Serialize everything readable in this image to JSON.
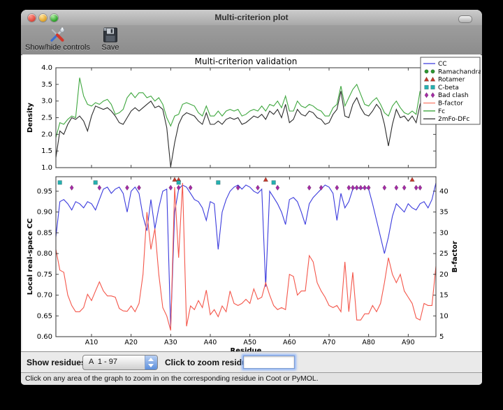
{
  "window": {
    "title": "Multi-criterion plot"
  },
  "toolbar": {
    "buttons": [
      {
        "label": "Show/hide controls",
        "icon": "tools-icon"
      },
      {
        "label": "Save",
        "icon": "floppy-disk-icon"
      }
    ]
  },
  "controls": {
    "show_residues_label": "Show residues:",
    "residue_range_value": "A  1 - 97",
    "zoom_label": "Click to zoom residue:",
    "zoom_input_value": ""
  },
  "status_bar": {
    "text": "Click on any area of the graph to zoom in on the corresponding residue in Coot or PyMOL."
  },
  "chart_data": [
    {
      "type": "line",
      "title": "Multi-criterion validation",
      "ylabel": "Density",
      "ylim": [
        1.0,
        4.0
      ],
      "ytick_labels": [
        "1.0",
        "1.5",
        "2.0",
        "2.5",
        "3.0",
        "3.5",
        "4.0"
      ],
      "yticks": [
        1.0,
        1.5,
        2.0,
        2.5,
        3.0,
        3.5,
        4.0
      ],
      "x_start": 1,
      "series": [
        {
          "name": "Fc",
          "color": "#3fa73f",
          "values": [
            1.9,
            2.35,
            2.3,
            2.45,
            2.55,
            2.5,
            3.7,
            3.15,
            2.9,
            2.85,
            2.95,
            2.9,
            3.0,
            3.05,
            2.9,
            2.6,
            2.65,
            2.75,
            3.1,
            3.25,
            3.1,
            3.25,
            3.25,
            3.1,
            3.15,
            3.0,
            3.1,
            2.9,
            2.5,
            2.25,
            2.55,
            2.6,
            2.9,
            2.95,
            2.9,
            2.85,
            2.65,
            2.55,
            2.85,
            2.55,
            2.55,
            2.7,
            2.55,
            2.7,
            2.75,
            2.7,
            2.75,
            2.55,
            2.6,
            2.7,
            2.75,
            2.7,
            2.85,
            2.7,
            2.9,
            2.85,
            3.0,
            2.8,
            3.15,
            2.7,
            2.7,
            3.0,
            2.85,
            2.8,
            2.9,
            2.85,
            2.75,
            2.7,
            2.55,
            2.55,
            2.8,
            2.9,
            3.45,
            2.85,
            3.1,
            3.35,
            3.5,
            3.2,
            2.9,
            2.85,
            3.0,
            3.1,
            2.9,
            2.65,
            2.55,
            2.85,
            3.0,
            2.8,
            2.65,
            2.6,
            2.7,
            2.6,
            3.3,
            2.75,
            2.7,
            3.55,
            3.0
          ]
        },
        {
          "name": "2mFo-DFc",
          "color": "#2b2b2b",
          "values": [
            1.3,
            2.1,
            2.0,
            2.3,
            2.5,
            2.45,
            2.55,
            2.4,
            2.1,
            2.55,
            2.85,
            2.8,
            2.75,
            2.8,
            2.7,
            2.55,
            2.35,
            2.3,
            2.5,
            2.7,
            2.8,
            2.7,
            2.8,
            2.9,
            3.0,
            2.8,
            2.85,
            2.75,
            2.2,
            1.02,
            1.75,
            2.3,
            2.55,
            2.65,
            2.6,
            2.55,
            2.4,
            2.3,
            2.65,
            2.3,
            2.3,
            2.4,
            2.3,
            2.45,
            2.5,
            2.45,
            2.5,
            2.3,
            2.35,
            2.45,
            2.55,
            2.5,
            2.6,
            2.45,
            2.7,
            2.6,
            2.75,
            2.5,
            2.9,
            2.35,
            2.45,
            2.75,
            2.6,
            2.55,
            2.7,
            2.65,
            2.5,
            2.45,
            2.3,
            2.35,
            2.6,
            2.75,
            3.3,
            2.55,
            2.5,
            2.9,
            3.1,
            2.8,
            2.6,
            2.55,
            2.7,
            2.9,
            2.75,
            2.3,
            1.65,
            2.3,
            2.75,
            2.5,
            2.55,
            2.4,
            2.55,
            2.35,
            2.9,
            2.6,
            2.5,
            2.9,
            2.95
          ]
        }
      ]
    },
    {
      "type": "line+scatter",
      "xlabel": "Residue",
      "ylabel_left": "Local real-space CC",
      "ylabel_right": "B-factor",
      "ylim_left": [
        0.6,
        0.985
      ],
      "ylim_right": [
        5,
        43.5
      ],
      "ytick_labels_left": [
        "0.60",
        "0.65",
        "0.70",
        "0.75",
        "0.80",
        "0.85",
        "0.90",
        "0.95"
      ],
      "yticks_left": [
        0.6,
        0.65,
        0.7,
        0.75,
        0.8,
        0.85,
        0.9,
        0.95
      ],
      "ytick_labels_right": [
        "5",
        "10",
        "15",
        "20",
        "25",
        "30",
        "35",
        "40"
      ],
      "yticks_right": [
        5,
        10,
        15,
        20,
        25,
        30,
        35,
        40
      ],
      "xtick_values": [
        10,
        20,
        30,
        40,
        50,
        60,
        70,
        80,
        90
      ],
      "xtick_labels": [
        "A10",
        "A20",
        "A30",
        "A40",
        "A50",
        "A60",
        "A70",
        "A80",
        "A90"
      ],
      "x_start": 1,
      "x_end": 97,
      "series": [
        {
          "name": "CC",
          "axis": "left",
          "color": "#3b3bdd",
          "values": [
            0.84,
            0.925,
            0.93,
            0.92,
            0.905,
            0.925,
            0.92,
            0.91,
            0.925,
            0.92,
            0.905,
            0.93,
            0.955,
            0.96,
            0.945,
            0.955,
            0.96,
            0.945,
            0.9,
            0.95,
            0.96,
            0.945,
            0.89,
            0.855,
            0.93,
            0.86,
            0.91,
            0.95,
            0.955,
            0.62,
            0.9,
            0.955,
            0.965,
            0.96,
            0.945,
            0.93,
            0.925,
            0.91,
            0.88,
            0.925,
            0.92,
            0.81,
            0.9,
            0.93,
            0.95,
            0.96,
            0.965,
            0.955,
            0.965,
            0.96,
            0.95,
            0.945,
            0.955,
            0.72,
            0.95,
            0.935,
            0.92,
            0.9,
            0.87,
            0.93,
            0.935,
            0.925,
            0.9,
            0.87,
            0.92,
            0.935,
            0.945,
            0.955,
            0.965,
            0.96,
            0.945,
            0.88,
            0.945,
            0.91,
            0.925,
            0.955,
            0.96,
            0.955,
            0.96,
            0.955,
            0.92,
            0.88,
            0.84,
            0.8,
            0.84,
            0.89,
            0.92,
            0.91,
            0.9,
            0.92,
            0.91,
            0.905,
            0.92,
            0.925,
            0.91,
            0.93,
            0.97
          ]
        },
        {
          "name": "B-factor",
          "axis": "right",
          "color": "#f4564a",
          "values": [
            26,
            21,
            20.5,
            15,
            12.5,
            11,
            11,
            12,
            15.2,
            13.7,
            16,
            18.2,
            16,
            14.8,
            14.8,
            14.5,
            11.8,
            11.2,
            11.1,
            12.4,
            11,
            13,
            20,
            35,
            26,
            31,
            20,
            12,
            10,
            6.5,
            41,
            24,
            42,
            7.5,
            12.4,
            11.5,
            13.7,
            12,
            16.2,
            10.3,
            11.5,
            9.8,
            12.4,
            11,
            16,
            13,
            12.5,
            13,
            14,
            13,
            16.5,
            14,
            14.5,
            18,
            15,
            12.5,
            11.5,
            12,
            11.5,
            20,
            19.5,
            15,
            16,
            16,
            24.5,
            23,
            18,
            16,
            14.5,
            12.5,
            12,
            12.5,
            11,
            23,
            11,
            20.5,
            9,
            9,
            10.5,
            10.5,
            12.5,
            11,
            13,
            18,
            24,
            20,
            18,
            20,
            16,
            14.5,
            13,
            9.5,
            9,
            13,
            12.5,
            12.5,
            22
          ]
        }
      ],
      "markers": [
        {
          "name": "Ramachandran",
          "shape": "circle",
          "color": "#2d9632",
          "y_row": 0.978,
          "residues": []
        },
        {
          "name": "Rotamer",
          "shape": "triangle",
          "color": "#c5392b",
          "y_row": 0.978,
          "residues": [
            31,
            32,
            54,
            91
          ]
        },
        {
          "name": "C-beta",
          "shape": "square",
          "color": "#25b0b0",
          "y_row": 0.971,
          "residues": [
            2,
            11,
            32,
            42,
            56
          ]
        },
        {
          "name": "Bad clash",
          "shape": "diamond",
          "color": "#a52ba5",
          "y_row": 0.9585,
          "residues": [
            5,
            12,
            19,
            22,
            30,
            32,
            35,
            47,
            52,
            57,
            65,
            68,
            72,
            75,
            76,
            77,
            78,
            79,
            80,
            84,
            87,
            89,
            92,
            93
          ]
        }
      ],
      "legend": {
        "location": "upper right",
        "entries": [
          {
            "label": "CC",
            "type": "line",
            "color": "#3b3bdd"
          },
          {
            "label": "Ramachandran",
            "type": "circle",
            "color": "#2d9632"
          },
          {
            "label": "Rotamer",
            "type": "triangle",
            "color": "#c5392b"
          },
          {
            "label": "C-beta",
            "type": "square",
            "color": "#25b0b0"
          },
          {
            "label": "Bad clash",
            "type": "diamond",
            "color": "#a52ba5"
          },
          {
            "label": "B-factor",
            "type": "line",
            "color": "#fa7b68"
          },
          {
            "label": "Fc",
            "type": "line",
            "color": "#3fa73f"
          },
          {
            "label": "2mFo-DFc",
            "type": "line",
            "color": "#2b2b2b"
          }
        ]
      }
    }
  ]
}
